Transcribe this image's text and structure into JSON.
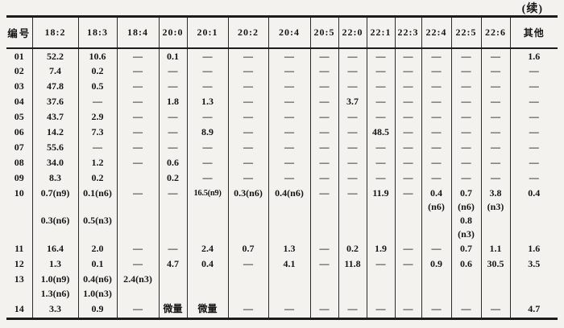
{
  "page": {
    "continued_label": "(续)"
  },
  "table": {
    "id_header": "编号",
    "columns": [
      "18:2",
      "18:3",
      "18:4",
      "20:0",
      "20:1",
      "20:2",
      "20:4",
      "20:5",
      "22:0",
      "22:1",
      "22:3",
      "22:4",
      "22:5",
      "22:6",
      "其他"
    ],
    "rows": [
      {
        "id": "01",
        "cells": [
          "52.2",
          "10.6",
          "—",
          "0.1",
          "—",
          "—",
          "—",
          "—",
          "—",
          "—",
          "—",
          "—",
          "—",
          "—",
          "1.6"
        ]
      },
      {
        "id": "02",
        "cells": [
          "7.4",
          "0.2",
          "—",
          "—",
          "—",
          "—",
          "—",
          "—",
          "—",
          "—",
          "—",
          "—",
          "—",
          "—",
          "—"
        ]
      },
      {
        "id": "03",
        "cells": [
          "47.8",
          "0.5",
          "—",
          "—",
          "—",
          "—",
          "—",
          "—",
          "—",
          "—",
          "—",
          "—",
          "—",
          "—",
          "—"
        ]
      },
      {
        "id": "04",
        "cells": [
          "37.6",
          "—",
          "—",
          "1.8",
          "1.3",
          "—",
          "—",
          "—",
          "3.7",
          "—",
          "—",
          "—",
          "—",
          "—",
          "—"
        ]
      },
      {
        "id": "05",
        "cells": [
          "43.7",
          "2.9",
          "—",
          "—",
          "—",
          "—",
          "—",
          "—",
          "—",
          "—",
          "—",
          "—",
          "—",
          "—",
          "—"
        ]
      },
      {
        "id": "06",
        "cells": [
          "14.2",
          "7.3",
          "—",
          "—",
          "8.9",
          "—",
          "—",
          "—",
          "—",
          "48.5",
          "—",
          "—",
          "—",
          "—",
          "—"
        ]
      },
      {
        "id": "07",
        "cells": [
          "55.6",
          "—",
          "—",
          "—",
          "—",
          "—",
          "—",
          "—",
          "—",
          "—",
          "—",
          "—",
          "—",
          "—",
          "—"
        ]
      },
      {
        "id": "08",
        "cells": [
          "34.0",
          "1.2",
          "—",
          "0.6",
          "—",
          "—",
          "—",
          "—",
          "—",
          "—",
          "—",
          "—",
          "—",
          "—",
          "—"
        ]
      },
      {
        "id": "09",
        "cells": [
          "8.3",
          "0.2",
          "",
          "0.2",
          "—",
          "—",
          "—",
          "—",
          "—",
          "—",
          "—",
          "—",
          "—",
          "—",
          "—"
        ]
      },
      {
        "id": "10",
        "cells": [
          "0.7(n9)\n \n0.3(n6)",
          "0.1(n6)\n \n0.5(n3)",
          "—",
          "—",
          "16.5(n9)",
          "0.3(n6)",
          "0.4(n6)",
          "—",
          "—",
          "11.9",
          "—",
          "0.4\n(n6)",
          "0.7\n(n6)\n0.8\n(n3)",
          "3.8\n(n3)",
          "0.4"
        ]
      },
      {
        "id": "11",
        "cells": [
          "16.4",
          "2.0",
          "—",
          "—",
          "2.4",
          "0.7",
          "1.3",
          "—",
          "0.2",
          "1.9",
          "—",
          "—",
          "0.7",
          "1.1",
          "1.6"
        ]
      },
      {
        "id": "12",
        "cells": [
          "1.3",
          "0.1",
          "—",
          "4.7",
          "0.4",
          "—",
          "4.1",
          "—",
          "11.8",
          "—",
          "—",
          "0.9",
          "0.6",
          "30.5",
          "3.5"
        ]
      },
      {
        "id": "13",
        "cells": [
          "1.0(n9)\n1.3(n6)",
          "0.4(n6)\n1.0(n3)",
          "2.4(n3)",
          "",
          "",
          "",
          "",
          "",
          "",
          "",
          "",
          "",
          "",
          "",
          ""
        ]
      },
      {
        "id": "14",
        "cells": [
          "3.3",
          "0.9",
          "—",
          "微量",
          "微量",
          "—",
          "—",
          "—",
          "—",
          "—",
          "—",
          "—",
          "—",
          "—",
          "4.7"
        ]
      }
    ]
  }
}
